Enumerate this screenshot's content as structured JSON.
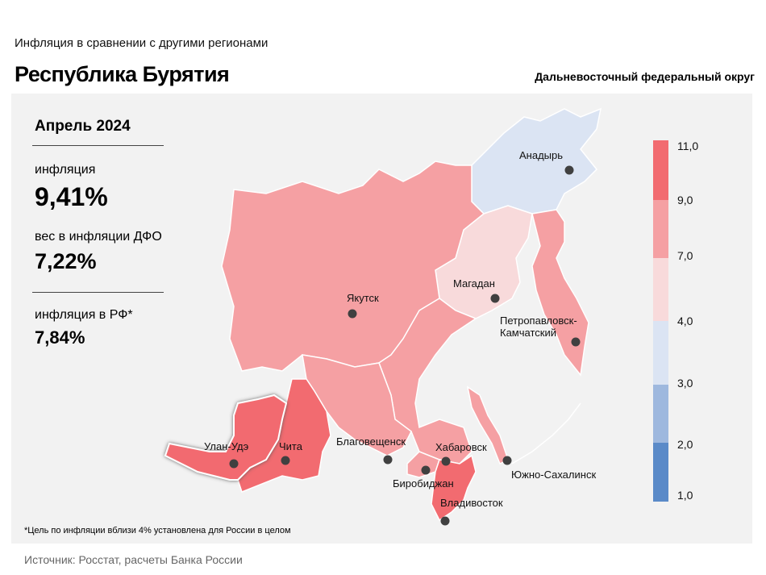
{
  "header": {
    "supertitle": "Инфляция  в сравнении  с другими  регионами",
    "title": "Республика Бурятия",
    "district": "Дальневосточный федеральный округ"
  },
  "stats": {
    "period": "Апрель 2024",
    "inflation_label": "инфляция",
    "inflation_value": "9,41%",
    "weight_label": "вес в инфляции  ДФО",
    "weight_value": "7,22%",
    "rf_label": "инфляция  в РФ*",
    "rf_value": "7,84%"
  },
  "footnote": "*Цель по инфляции вблизи 4% установлена для России в целом",
  "source": "Источник: Росстат, расчеты Банка России",
  "colors": {
    "bin_above_9": "#f26b70",
    "bin_7_9": "#f5a0a3",
    "bin_4_7": "#f8dadb",
    "bin_3_4": "#dbe4f3",
    "bin_2_3": "#9eb8de",
    "bin_below_2": "#5a8ac8",
    "panel": "#f2f2f2",
    "city_marker": "#404040"
  },
  "scale": {
    "ticks": [
      "11,0",
      "9,0",
      "7,0",
      "4,0",
      "3,0",
      "2,0",
      "1,0"
    ]
  },
  "map": {
    "highlighted_region": "Республика Бурятия",
    "cities": [
      {
        "name": "Анадырь"
      },
      {
        "name": "Магадан"
      },
      {
        "name": "Якутск"
      },
      {
        "name": "Петропавловск-"
      },
      {
        "name": "Камчатский"
      },
      {
        "name": "Улан-Удэ"
      },
      {
        "name": "Чита"
      },
      {
        "name": "Благовещенск"
      },
      {
        "name": "Хабаровск"
      },
      {
        "name": "Биробиджан"
      },
      {
        "name": "Южно-Сахалинск"
      },
      {
        "name": "Владивосток"
      }
    ]
  }
}
